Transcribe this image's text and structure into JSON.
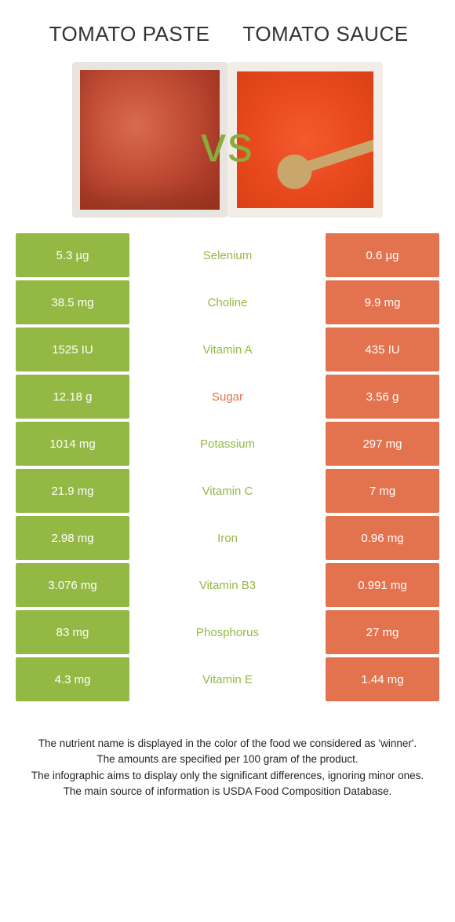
{
  "titles": {
    "left": "TOMATO PASTE",
    "right": "TOMATO SAUCE"
  },
  "vs": "vs",
  "colors": {
    "green": "#94b844",
    "orange": "#e3734f",
    "mid_green": "#94b844",
    "mid_orange": "#e3734f"
  },
  "rows": [
    {
      "left": "5.3 µg",
      "label": "Selenium",
      "right": "0.6 µg",
      "label_color": "#94b844"
    },
    {
      "left": "38.5 mg",
      "label": "Choline",
      "right": "9.9 mg",
      "label_color": "#94b844"
    },
    {
      "left": "1525 IU",
      "label": "Vitamin A",
      "right": "435 IU",
      "label_color": "#94b844"
    },
    {
      "left": "12.18 g",
      "label": "Sugar",
      "right": "3.56 g",
      "label_color": "#e3734f"
    },
    {
      "left": "1014 mg",
      "label": "Potassium",
      "right": "297 mg",
      "label_color": "#94b844"
    },
    {
      "left": "21.9 mg",
      "label": "Vitamin C",
      "right": "7 mg",
      "label_color": "#94b844"
    },
    {
      "left": "2.98 mg",
      "label": "Iron",
      "right": "0.96 mg",
      "label_color": "#94b844"
    },
    {
      "left": "3.076 mg",
      "label": "Vitamin B3",
      "right": "0.991 mg",
      "label_color": "#94b844"
    },
    {
      "left": "83 mg",
      "label": "Phosphorus",
      "right": "27 mg",
      "label_color": "#94b844"
    },
    {
      "left": "4.3 mg",
      "label": "Vitamin E",
      "right": "1.44 mg",
      "label_color": "#94b844"
    }
  ],
  "footer": [
    "The nutrient name is displayed in the color of the food we considered as 'winner'.",
    "The amounts are specified per 100 gram of the product.",
    "The infographic aims to display only the significant differences, ignoring minor ones.",
    "The main source of information is USDA Food Composition Database."
  ]
}
